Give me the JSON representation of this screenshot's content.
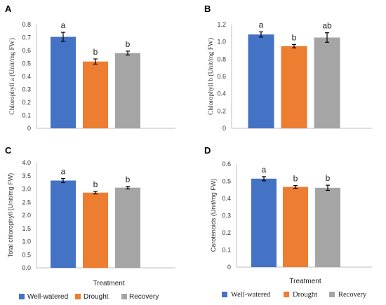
{
  "chart_data": [
    {
      "panel": "A",
      "type": "bar",
      "categories": [
        "Well-watered",
        "Drought",
        "Recovery"
      ],
      "values": [
        0.705,
        0.515,
        0.58
      ],
      "errors": [
        0.035,
        0.02,
        0.015
      ],
      "significance": [
        "a",
        "b",
        "b"
      ],
      "ylabel": "Chlorophyll a (Unit/mg FW)",
      "ylim": [
        0,
        0.8
      ],
      "yticks": [
        "0",
        "0.1",
        "0.2",
        "0.3",
        "0.4",
        "0.5",
        "0.6",
        "0.7",
        "0.8"
      ],
      "xlabel": "",
      "grid": false
    },
    {
      "panel": "B",
      "type": "bar",
      "categories": [
        "Well-watered",
        "Drought",
        "Recovery"
      ],
      "values": [
        1.085,
        0.95,
        1.05
      ],
      "errors": [
        0.03,
        0.02,
        0.055
      ],
      "significance": [
        "a",
        "b",
        "ab"
      ],
      "ylabel": "Chlorophyll b (Unit/mg FW)",
      "ylim": [
        0,
        1.2
      ],
      "yticks": [
        "0",
        "0.2",
        "0.4",
        "0.6",
        "0.8",
        "1.0",
        "1.2"
      ],
      "xlabel": "",
      "grid": false
    },
    {
      "panel": "C",
      "type": "bar",
      "categories": [
        "Well-watered",
        "Drought",
        "Recovery"
      ],
      "values": [
        3.32,
        2.86,
        3.05
      ],
      "errors": [
        0.08,
        0.05,
        0.05
      ],
      "significance": [
        "a",
        "b",
        "b"
      ],
      "ylabel": "Total chlorophyll (Unit/mg FW)",
      "ylim": [
        0,
        4.0
      ],
      "yticks": [
        "0.0",
        "0.5",
        "1.0",
        "1.5",
        "2.0",
        "2.5",
        "3.0",
        "3.5",
        "4.0"
      ],
      "xlabel": "Treatment",
      "grid": false
    },
    {
      "panel": "D",
      "type": "bar",
      "categories": [
        "Well-watered",
        "Drought",
        "Recovery"
      ],
      "values": [
        0.515,
        0.467,
        0.462
      ],
      "errors": [
        0.012,
        0.008,
        0.015
      ],
      "significance": [
        "a",
        "b",
        "b"
      ],
      "ylabel": "Carotenoids (Unit/mg FW)",
      "ylim": [
        0,
        0.6
      ],
      "yticks": [
        "0",
        "0.1",
        "0.2",
        "0.3",
        "0.4",
        "0.5",
        "0.6"
      ],
      "xlabel": "Treatment",
      "grid": false
    }
  ],
  "legend": {
    "placement": "bottom",
    "entries": [
      "Well-watered",
      "Drought",
      "Recovery"
    ]
  },
  "colors": {
    "Well-watered": "#4472c4",
    "Drought": "#ed7d31",
    "Recovery": "#a5a5a5",
    "axis": "#bfbfbf",
    "errorbar": "#000000"
  }
}
